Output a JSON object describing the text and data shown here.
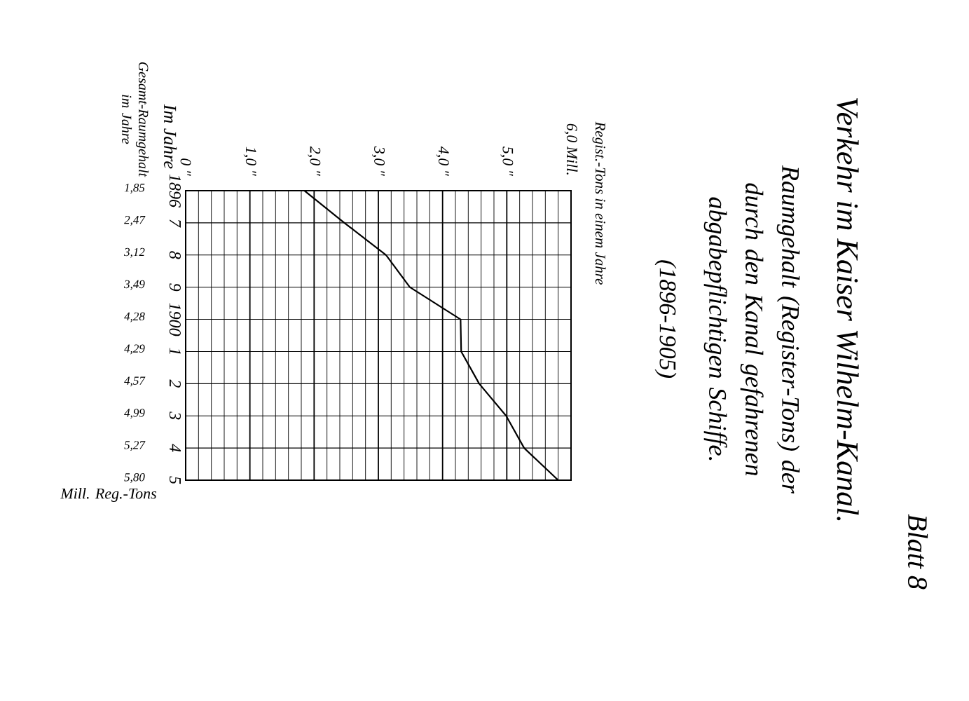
{
  "chart_data": {
    "type": "line",
    "title": "Verkehr im Kaiser Wilhelm-Kanal.",
    "subtitle": "Raumgehalt (Register-Tons) der durch den Kanal gefahrenen abgabepflichtigen Schiffe.",
    "ylabel": "Im Jahre",
    "annotations": [
      "Blatt 8",
      "(1896-1905)",
      "Gesamt-Raumgehalt im Jahre",
      "Mill. Reg.-Tons",
      "Regist.-Tons in einem Jahre"
    ],
    "orientation": "horizontal",
    "categories": [
      "1896",
      "7",
      "8",
      "9",
      "1900",
      "1",
      "2",
      "3",
      "4",
      "5"
    ],
    "values": [
      1.85,
      2.47,
      3.12,
      3.49,
      4.28,
      4.29,
      4.57,
      4.99,
      5.27,
      5.8
    ],
    "value_labels": [
      "1,85",
      "2,47",
      "3,12",
      "3,49",
      "4,28",
      "4,29",
      "4,57",
      "4,99",
      "5,27",
      "5,80"
    ],
    "color": "#000000",
    "xlim": [
      0,
      6
    ],
    "xticks": [
      {
        "value": 0,
        "label": "0 ″"
      },
      {
        "value": 0.2,
        "label": null
      },
      {
        "value": 0.4,
        "label": null
      },
      {
        "value": 0.6,
        "label": null
      },
      {
        "value": 0.8,
        "label": null
      },
      {
        "value": 1,
        "label": "1,0 ″"
      },
      {
        "value": 1.2,
        "label": null
      },
      {
        "value": 1.4,
        "label": null
      },
      {
        "value": 1.6,
        "label": null
      },
      {
        "value": 1.8,
        "label": null
      },
      {
        "value": 2,
        "label": "2,0 ″"
      },
      {
        "value": 2.2,
        "label": null
      },
      {
        "value": 2.4,
        "label": null
      },
      {
        "value": 2.6,
        "label": null
      },
      {
        "value": 2.8,
        "label": null
      },
      {
        "value": 3,
        "label": "3,0 ″"
      },
      {
        "value": 3.2,
        "label": null
      },
      {
        "value": 3.4,
        "label": null
      },
      {
        "value": 3.6,
        "label": null
      },
      {
        "value": 3.8,
        "label": null
      },
      {
        "value": 4,
        "label": "4,0 ″"
      },
      {
        "value": 4.2,
        "label": null
      },
      {
        "value": 4.4,
        "label": null
      },
      {
        "value": 4.6,
        "label": null
      },
      {
        "value": 4.8,
        "label": null
      },
      {
        "value": 5,
        "label": "5,0 ″"
      },
      {
        "value": 5.2,
        "label": null
      },
      {
        "value": 5.4,
        "label": null
      },
      {
        "value": 5.6,
        "label": null
      },
      {
        "value": 5.8,
        "label": null
      },
      {
        "value": 6,
        "label": "6,0 Mill."
      }
    ],
    "grid": true,
    "line_style": "solid"
  }
}
